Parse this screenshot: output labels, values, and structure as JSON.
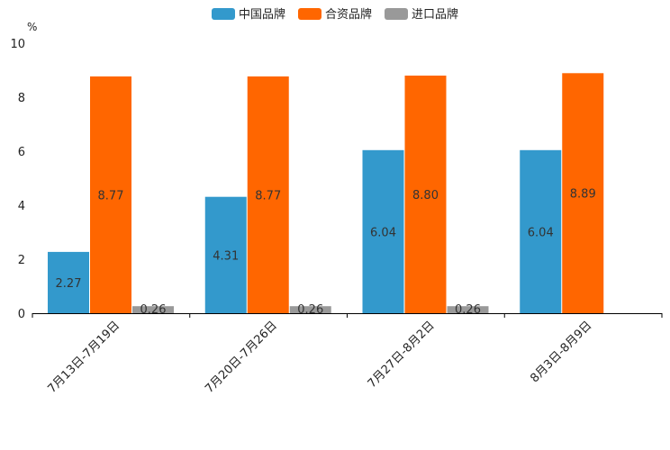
{
  "chart_data": {
    "type": "bar",
    "title": "",
    "xlabel": "",
    "ylabel": "%",
    "ylim": [
      0,
      10
    ],
    "yticks": [
      "0",
      "2",
      "4",
      "6",
      "8",
      "10"
    ],
    "categories": [
      "7月13日-7月19日",
      "7月20日-7月26日",
      "7月27日-8月2日",
      "8月3日-8月9日"
    ],
    "series": [
      {
        "name": "中国品牌",
        "color": "#3399cc",
        "values": [
          2.27,
          4.31,
          6.04,
          6.04
        ],
        "labels": [
          "2.27",
          "4.31",
          "6.04",
          "6.04"
        ]
      },
      {
        "name": "合资品牌",
        "color": "#ff6600",
        "values": [
          8.77,
          8.77,
          8.8,
          8.89
        ],
        "labels": [
          "8.77",
          "8.77",
          "8.80",
          "8.89"
        ]
      },
      {
        "name": "进口品牌",
        "color": "#999999",
        "values": [
          0.26,
          0.26,
          0.26,
          null
        ],
        "labels": [
          "0.26",
          "0.26",
          "0.26",
          ""
        ]
      }
    ],
    "legend_position": "top-center",
    "grid": false
  }
}
